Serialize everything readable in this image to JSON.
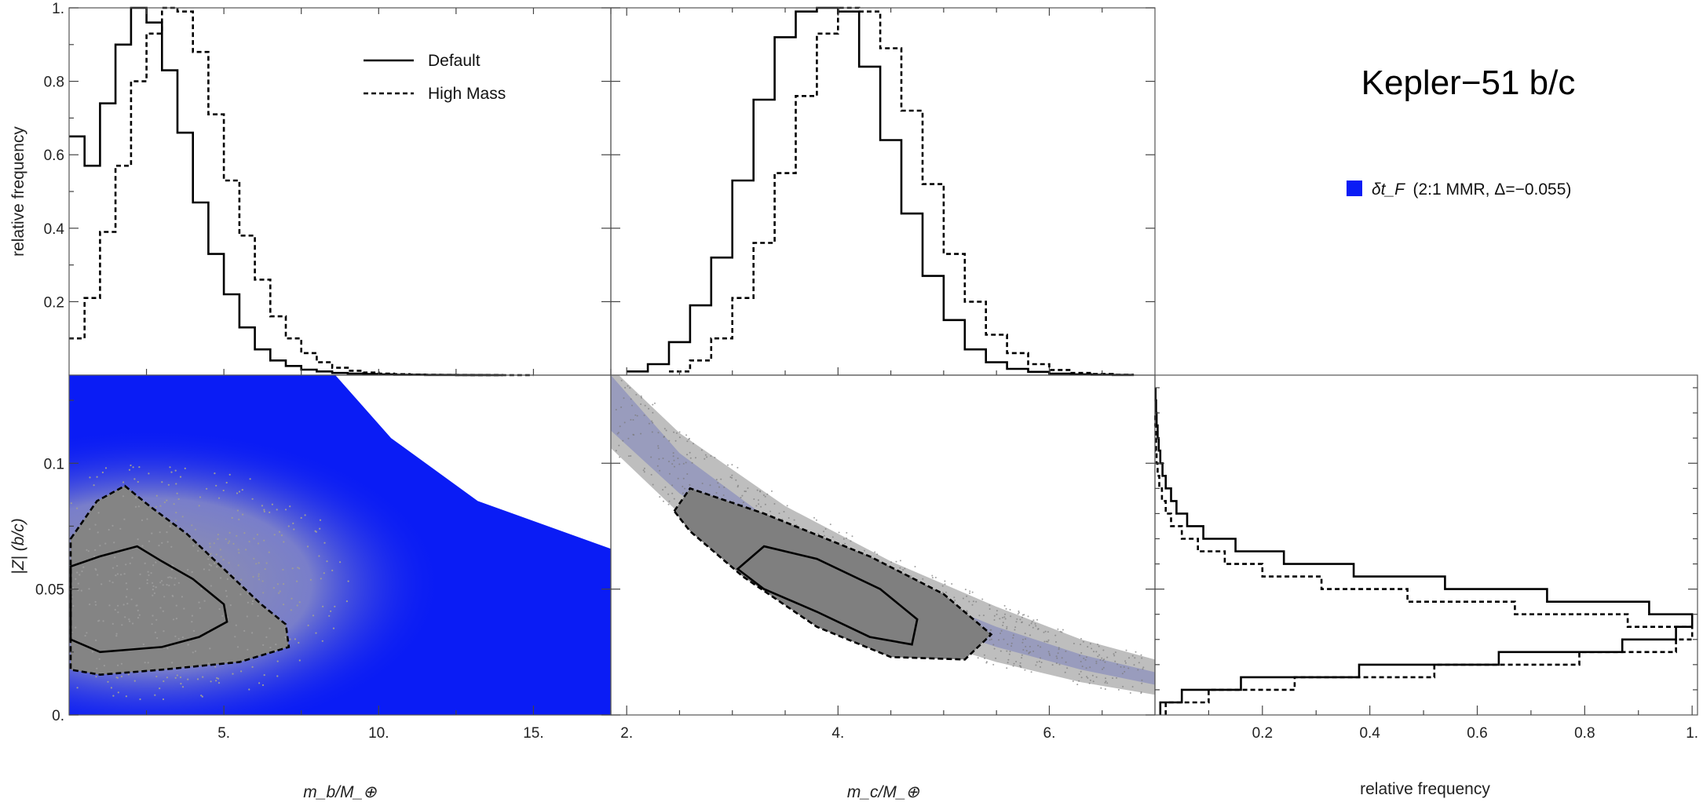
{
  "chart_data": [
    {
      "type": "histogram",
      "panel": "top-left",
      "ylabel": "relative frequency",
      "xlim": [
        0,
        17.5
      ],
      "ylim": [
        0,
        1.0
      ],
      "yticks": [
        0.2,
        0.4,
        0.6,
        0.8,
        1.0
      ],
      "ytick_labels": [
        "0.2",
        "0.4",
        "0.6",
        "0.8",
        "1."
      ],
      "series": [
        {
          "name": "Default",
          "style": "solid",
          "bins": [
            0,
            0.5,
            1,
            1.5,
            2,
            2.5,
            3,
            3.5,
            4,
            4.5,
            5,
            5.5,
            6,
            6.5,
            7,
            7.5,
            8,
            8.5,
            9,
            9.5,
            10,
            10.5,
            11,
            11.5,
            12,
            12.5,
            13,
            13.5,
            14
          ],
          "values": [
            0.65,
            0.57,
            0.74,
            0.9,
            1.0,
            0.96,
            0.83,
            0.66,
            0.47,
            0.33,
            0.22,
            0.13,
            0.07,
            0.04,
            0.025,
            0.015,
            0.01,
            0.006,
            0.004,
            0.003,
            0.002,
            0.001,
            0.001,
            0.0005,
            0.0005,
            0.0003,
            0.0002,
            0.0001
          ]
        },
        {
          "name": "High Mass",
          "style": "dashed",
          "bins": [
            0,
            0.5,
            1,
            1.5,
            2,
            2.5,
            3,
            3.5,
            4,
            4.5,
            5,
            5.5,
            6,
            6.5,
            7,
            7.5,
            8,
            8.5,
            9,
            9.5,
            10,
            10.5,
            11,
            11.5,
            12,
            12.5,
            13,
            13.5,
            14,
            14.5,
            15
          ],
          "values": [
            0.1,
            0.21,
            0.39,
            0.57,
            0.8,
            0.93,
            1.0,
            0.99,
            0.88,
            0.71,
            0.53,
            0.38,
            0.26,
            0.16,
            0.1,
            0.06,
            0.035,
            0.02,
            0.012,
            0.007,
            0.004,
            0.0025,
            0.0015,
            0.001,
            0.0007,
            0.0005,
            0.0003,
            0.0002,
            0.0001,
            0.0001
          ]
        }
      ]
    },
    {
      "type": "histogram",
      "panel": "top-middle",
      "xlim": [
        1.85,
        7.0
      ],
      "ylim": [
        0,
        1.0
      ],
      "series": [
        {
          "name": "Default",
          "style": "solid",
          "bins": [
            2.0,
            2.2,
            2.4,
            2.6,
            2.8,
            3.0,
            3.2,
            3.4,
            3.6,
            3.8,
            4.0,
            4.2,
            4.4,
            4.6,
            4.8,
            5.0,
            5.2,
            5.4,
            5.6,
            5.8,
            6.0,
            6.2,
            6.4,
            6.6,
            6.8
          ],
          "values": [
            0.01,
            0.03,
            0.09,
            0.19,
            0.32,
            0.53,
            0.75,
            0.92,
            0.99,
            1.0,
            0.99,
            0.84,
            0.64,
            0.44,
            0.27,
            0.15,
            0.07,
            0.035,
            0.017,
            0.009,
            0.004,
            0.002,
            0.001,
            0.0005
          ]
        },
        {
          "name": "High Mass",
          "style": "dashed",
          "bins": [
            2.4,
            2.6,
            2.8,
            3.0,
            3.2,
            3.4,
            3.6,
            3.8,
            4.0,
            4.2,
            4.4,
            4.6,
            4.8,
            5.0,
            5.2,
            5.4,
            5.6,
            5.8,
            6.0,
            6.2,
            6.4,
            6.6,
            6.8
          ],
          "values": [
            0.01,
            0.04,
            0.1,
            0.21,
            0.36,
            0.55,
            0.76,
            0.93,
            1.0,
            0.99,
            0.89,
            0.72,
            0.52,
            0.33,
            0.2,
            0.11,
            0.06,
            0.03,
            0.014,
            0.006,
            0.003,
            0.001
          ]
        }
      ]
    },
    {
      "type": "scatter",
      "panel": "bottom-left",
      "xlabel": "m_b/M_⊕",
      "ylabel": "|Z| (b/c)",
      "xlim": [
        0,
        17.5
      ],
      "ylim": [
        0,
        0.135
      ],
      "xticks": [
        5,
        10,
        15
      ],
      "xtick_labels": [
        "5.",
        "10.",
        "15."
      ],
      "yticks": [
        0,
        0.05,
        0.1
      ],
      "ytick_labels": [
        "0.",
        "0.05",
        "0.1"
      ],
      "region_upper_boundary": [
        [
          0,
          0.135
        ],
        [
          8.6,
          0.135
        ],
        [
          10.4,
          0.11
        ],
        [
          13.2,
          0.085
        ],
        [
          17.5,
          0.066
        ]
      ],
      "contours": [
        {
          "level": "inner",
          "style": "solid",
          "points": [
            [
              0.05,
              0.049
            ],
            [
              0.05,
              0.059
            ],
            [
              1.0,
              0.063
            ],
            [
              2.2,
              0.067
            ],
            [
              3.0,
              0.061
            ],
            [
              4.0,
              0.054
            ],
            [
              5.0,
              0.044
            ],
            [
              5.1,
              0.037
            ],
            [
              4.2,
              0.031
            ],
            [
              3.0,
              0.027
            ],
            [
              1.0,
              0.025
            ],
            [
              0.05,
              0.03
            ]
          ]
        },
        {
          "level": "outer",
          "style": "dashed",
          "points": [
            [
              0.05,
              0.07
            ],
            [
              0.9,
              0.085
            ],
            [
              1.8,
              0.091
            ],
            [
              2.6,
              0.083
            ],
            [
              3.8,
              0.072
            ],
            [
              5.0,
              0.058
            ],
            [
              6.2,
              0.044
            ],
            [
              7.0,
              0.036
            ],
            [
              7.1,
              0.027
            ],
            [
              5.5,
              0.021
            ],
            [
              3.0,
              0.018
            ],
            [
              1.0,
              0.016
            ],
            [
              0.05,
              0.018
            ]
          ]
        }
      ]
    },
    {
      "type": "scatter",
      "panel": "bottom-middle",
      "xlabel": "m_c/M_⊕",
      "xlim": [
        1.85,
        7.0
      ],
      "ylim": [
        0,
        0.135
      ],
      "xticks": [
        2,
        4,
        6
      ],
      "xtick_labels": [
        "2.",
        "4.",
        "6."
      ],
      "band_upper": [
        [
          1.85,
          0.135
        ],
        [
          2.5,
          0.104
        ],
        [
          3.5,
          0.073
        ],
        [
          4.5,
          0.052
        ],
        [
          5.5,
          0.035
        ],
        [
          6.3,
          0.024
        ],
        [
          7.0,
          0.017
        ]
      ],
      "band_lower": [
        [
          1.85,
          0.113
        ],
        [
          2.5,
          0.088
        ],
        [
          3.5,
          0.06
        ],
        [
          4.5,
          0.041
        ],
        [
          5.5,
          0.027
        ],
        [
          6.3,
          0.018
        ],
        [
          7.0,
          0.012
        ]
      ],
      "contours": [
        {
          "level": "inner",
          "style": "solid",
          "points": [
            [
              3.05,
              0.058
            ],
            [
              3.3,
              0.067
            ],
            [
              3.8,
              0.062
            ],
            [
              4.4,
              0.05
            ],
            [
              4.75,
              0.038
            ],
            [
              4.7,
              0.028
            ],
            [
              4.3,
              0.031
            ],
            [
              3.8,
              0.041
            ],
            [
              3.3,
              0.05
            ]
          ]
        },
        {
          "level": "outer",
          "style": "dashed",
          "points": [
            [
              2.45,
              0.081
            ],
            [
              2.6,
              0.09
            ],
            [
              3.3,
              0.08
            ],
            [
              4.3,
              0.063
            ],
            [
              5.0,
              0.048
            ],
            [
              5.45,
              0.032
            ],
            [
              5.2,
              0.022
            ],
            [
              4.5,
              0.023
            ],
            [
              3.8,
              0.035
            ],
            [
              3.1,
              0.055
            ],
            [
              2.6,
              0.073
            ]
          ]
        }
      ]
    },
    {
      "type": "histogram",
      "orientation": "horizontal",
      "panel": "bottom-right",
      "xlabel": "relative frequency",
      "xlim": [
        0,
        1.01
      ],
      "ylim": [
        0,
        0.135
      ],
      "xticks": [
        0.2,
        0.4,
        0.6,
        0.8,
        1.0
      ],
      "xtick_labels": [
        "0.2",
        "0.4",
        "0.6",
        "0.8",
        "1."
      ],
      "series": [
        {
          "name": "Default",
          "style": "solid",
          "ybins": [
            0,
            0.005,
            0.01,
            0.015,
            0.02,
            0.025,
            0.03,
            0.035,
            0.04,
            0.045,
            0.05,
            0.055,
            0.06,
            0.065,
            0.07,
            0.075,
            0.08,
            0.085,
            0.09,
            0.095,
            0.1,
            0.105,
            0.11,
            0.115,
            0.12,
            0.125,
            0.13
          ],
          "values": [
            0.01,
            0.05,
            0.16,
            0.38,
            0.64,
            0.87,
            0.97,
            1.0,
            0.92,
            0.73,
            0.54,
            0.37,
            0.24,
            0.15,
            0.09,
            0.06,
            0.04,
            0.03,
            0.02,
            0.014,
            0.01,
            0.007,
            0.005,
            0.003,
            0.002,
            0.001
          ]
        },
        {
          "name": "High Mass",
          "style": "dashed",
          "ybins": [
            0,
            0.005,
            0.01,
            0.015,
            0.02,
            0.025,
            0.03,
            0.035,
            0.04,
            0.045,
            0.05,
            0.055,
            0.06,
            0.065,
            0.07,
            0.075,
            0.08,
            0.085,
            0.09,
            0.095,
            0.1,
            0.105,
            0.11,
            0.115,
            0.12
          ],
          "values": [
            0.02,
            0.1,
            0.26,
            0.52,
            0.79,
            0.97,
            1.0,
            0.88,
            0.67,
            0.47,
            0.31,
            0.2,
            0.13,
            0.08,
            0.05,
            0.03,
            0.02,
            0.013,
            0.008,
            0.005,
            0.003,
            0.002,
            0.001,
            0.0005
          ]
        }
      ]
    }
  ],
  "title": "Kepler−51 b/c",
  "legend": {
    "default_label": "Default",
    "high_mass_label": "High Mass",
    "region_label_symbol": "δt_F",
    "region_label_text": "(2:1 MMR, Δ=−0.055)",
    "region_color": "#0a1cf5"
  },
  "colors": {
    "region": "#0a1cf5",
    "scatter": "#8c8c8c",
    "line": "#000000"
  }
}
